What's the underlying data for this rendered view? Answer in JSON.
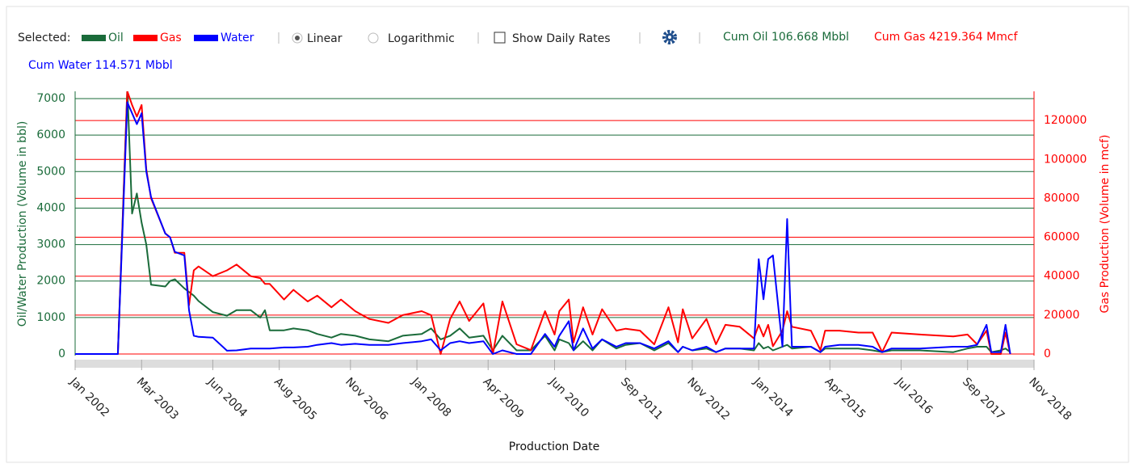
{
  "toolbar": {
    "selected_label": "Selected:",
    "scale_options": [
      "Linear",
      "Logarithmic"
    ],
    "daily_rates_label": "Show Daily Rates",
    "totals": [
      "Cum Oil 106.668 Mbbl",
      "Cum Gas 4219.364 Mmcf",
      "Cum Water 114.571 Mbbl"
    ]
  },
  "chart_data": {
    "type": "line",
    "log_scale": false,
    "grid": true,
    "y_label": "Oil/Water Production (Volume in bbl)",
    "y2_label": "Gas Production (Volume in mcf)",
    "x_label": "Production Date",
    "xlim": [
      "2002-01",
      "2018-11"
    ],
    "xticks": [
      {
        "value": "2002-01",
        "label": "Jan 2002"
      },
      {
        "value": "2003-03",
        "label": "Mar 2003"
      },
      {
        "value": "2004-06",
        "label": "Jun 2004"
      },
      {
        "value": "2005-08",
        "label": "Aug 2005"
      },
      {
        "value": "2006-11",
        "label": "Nov 2006"
      },
      {
        "value": "2008-01",
        "label": "Jan 2008"
      },
      {
        "value": "2009-04",
        "label": "Apr 2009"
      },
      {
        "value": "2010-06",
        "label": "Jun 2010"
      },
      {
        "value": "2011-09",
        "label": "Sep 2011"
      },
      {
        "value": "2012-11",
        "label": "Nov 2012"
      },
      {
        "value": "2014-01",
        "label": "Jan 2014"
      },
      {
        "value": "2015-04",
        "label": "Apr 2015"
      },
      {
        "value": "2016-07",
        "label": "Jul 2016"
      },
      {
        "value": "2017-09",
        "label": "Sep 2017"
      },
      {
        "value": "2018-11",
        "label": "Nov 2018"
      }
    ],
    "ylim": [
      0,
      7200
    ],
    "yticks": [
      0,
      1000,
      2000,
      3000,
      4000,
      5000,
      6000,
      7000
    ],
    "y2lim": [
      0,
      135000
    ],
    "y2ticks": [
      0,
      20000,
      40000,
      60000,
      80000,
      100000,
      120000
    ],
    "x": [
      "2002-01",
      "2002-10",
      "2002-12",
      "2003-01",
      "2003-02",
      "2003-03",
      "2003-04",
      "2003-05",
      "2003-08",
      "2003-09",
      "2003-10",
      "2003-12",
      "2004-01",
      "2004-02",
      "2004-03",
      "2004-06",
      "2004-09",
      "2004-11",
      "2005-02",
      "2005-04",
      "2005-05",
      "2005-06",
      "2005-09",
      "2005-11",
      "2006-02",
      "2006-04",
      "2006-07",
      "2006-09",
      "2006-12",
      "2007-03",
      "2007-07",
      "2007-10",
      "2008-02",
      "2008-04",
      "2008-06",
      "2008-08",
      "2008-10",
      "2008-12",
      "2009-03",
      "2009-05",
      "2009-07",
      "2009-10",
      "2010-01",
      "2010-04",
      "2010-06",
      "2010-07",
      "2010-09",
      "2010-10",
      "2010-12",
      "2011-02",
      "2011-04",
      "2011-07",
      "2011-09",
      "2011-12",
      "2012-03",
      "2012-06",
      "2012-08",
      "2012-09",
      "2012-11",
      "2013-02",
      "2013-04",
      "2013-06",
      "2013-09",
      "2013-12",
      "2014-01",
      "2014-02",
      "2014-03",
      "2014-04",
      "2014-06",
      "2014-07",
      "2014-08",
      "2014-12",
      "2015-02",
      "2015-03",
      "2015-06",
      "2015-10",
      "2016-01",
      "2016-03",
      "2016-05",
      "2016-11",
      "2017-06",
      "2017-09",
      "2017-11",
      "2018-01",
      "2018-02",
      "2018-04",
      "2018-05",
      "2018-06"
    ],
    "series": [
      {
        "name": "Oil",
        "color": "#1a6b3a",
        "values": [
          0,
          0,
          7300,
          3850,
          4400,
          3600,
          3000,
          1900,
          1850,
          2000,
          2050,
          1800,
          1700,
          1600,
          1450,
          1150,
          1050,
          1200,
          1200,
          1000,
          1200,
          650,
          650,
          700,
          650,
          550,
          450,
          550,
          500,
          400,
          350,
          500,
          550,
          700,
          400,
          500,
          700,
          450,
          500,
          100,
          500,
          100,
          100,
          500,
          100,
          400,
          300,
          100,
          350,
          100,
          400,
          150,
          250,
          300,
          100,
          300,
          50,
          200,
          100,
          150,
          50,
          150,
          150,
          100,
          300,
          150,
          200,
          100,
          200,
          250,
          150,
          200,
          50,
          150,
          150,
          150,
          100,
          50,
          100,
          100,
          50,
          150,
          200,
          200,
          50,
          100,
          150,
          50
        ]
      },
      {
        "name": "Gas",
        "color": "#ff0000",
        "axis": "y2",
        "values": [
          0,
          0,
          135000,
          128000,
          122000,
          128000,
          95000,
          80000,
          62000,
          60000,
          52000,
          52000,
          25000,
          43000,
          45000,
          40000,
          43000,
          46000,
          40000,
          39000,
          36000,
          36000,
          28000,
          33000,
          27000,
          30000,
          24000,
          28000,
          22000,
          18000,
          16000,
          20000,
          22000,
          20000,
          0,
          18000,
          27000,
          17000,
          26000,
          0,
          27000,
          5000,
          2000,
          22000,
          10000,
          22000,
          28000,
          6000,
          24000,
          10000,
          23000,
          12000,
          13000,
          12000,
          5000,
          24000,
          6000,
          23000,
          8000,
          18000,
          5000,
          15000,
          14000,
          8000,
          15000,
          9000,
          15000,
          4000,
          12000,
          22000,
          14000,
          12000,
          2000,
          12000,
          12000,
          11000,
          11000,
          1000,
          11000,
          10000,
          9000,
          10000,
          5000,
          12000,
          0,
          0,
          11000,
          0
        ]
      },
      {
        "name": "Water",
        "color": "#0000ff",
        "values": [
          0,
          0,
          6900,
          6600,
          6300,
          6600,
          5000,
          4300,
          3300,
          3200,
          2800,
          2700,
          1200,
          500,
          470,
          450,
          90,
          100,
          150,
          150,
          150,
          150,
          180,
          180,
          200,
          250,
          300,
          250,
          280,
          250,
          250,
          300,
          350,
          400,
          100,
          300,
          350,
          300,
          350,
          0,
          100,
          0,
          0,
          550,
          200,
          500,
          900,
          100,
          700,
          150,
          400,
          200,
          300,
          300,
          150,
          350,
          50,
          200,
          100,
          200,
          50,
          150,
          150,
          150,
          2600,
          1500,
          2600,
          2700,
          200,
          3700,
          200,
          200,
          50,
          200,
          250,
          250,
          200,
          50,
          150,
          150,
          200,
          200,
          250,
          800,
          50,
          50,
          800,
          0
        ]
      }
    ]
  }
}
